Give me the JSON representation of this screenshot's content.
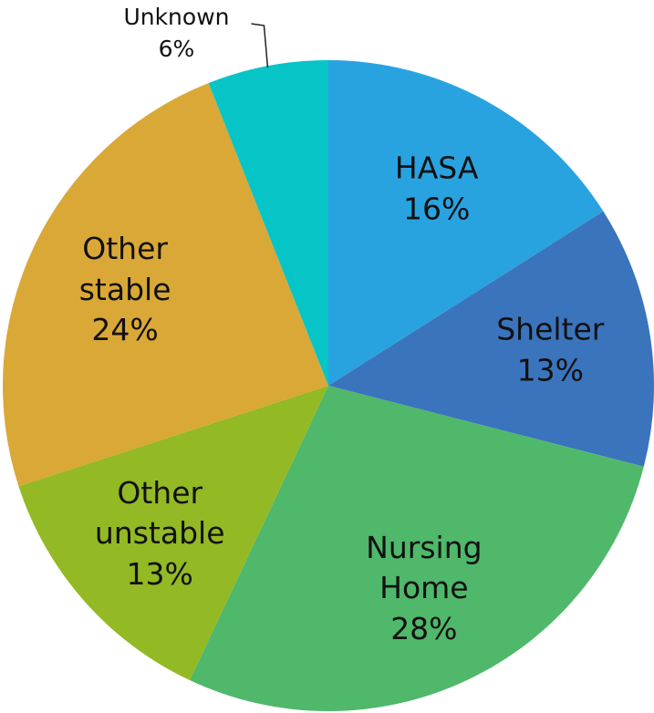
{
  "chart_data": {
    "type": "pie",
    "categories": [
      "HASA",
      "Shelter",
      "Nursing Home",
      "Other unstable",
      "Other stable",
      "Unknown"
    ],
    "values": [
      16,
      13,
      28,
      13,
      24,
      6
    ],
    "value_labels": [
      "16%",
      "13%",
      "28%",
      "13%",
      "24%",
      "6%"
    ],
    "colors": [
      "#29a3e0",
      "#3a74bc",
      "#4fb86a",
      "#93b925",
      "#d9a837",
      "#07c4c6"
    ]
  }
}
